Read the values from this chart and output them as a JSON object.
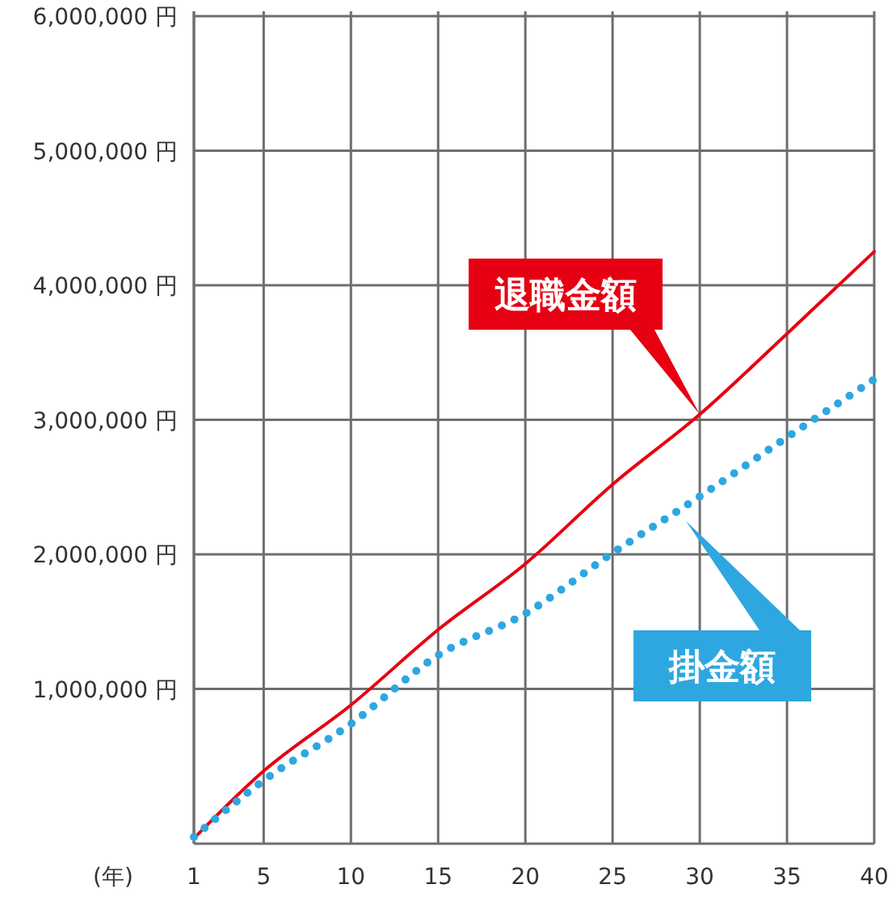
{
  "chart_data": {
    "type": "line",
    "xlabel": "(年)",
    "x": [
      1,
      5,
      10,
      15,
      20,
      25,
      30,
      35,
      40
    ],
    "series": [
      {
        "name": "退職金額",
        "color": "#e60012",
        "line_style": "solid",
        "values": [
          -110000,
          390000,
          880000,
          1440000,
          1930000,
          2520000,
          3040000,
          3640000,
          4250000
        ]
      },
      {
        "name": "掛金額",
        "color": "#2ea7e0",
        "line_style": "dotted",
        "values": [
          -100000,
          320000,
          740000,
          1250000,
          1560000,
          2010000,
          2430000,
          2870000,
          3300000
        ]
      }
    ],
    "xlim": [
      1,
      40
    ],
    "xticks": [
      1,
      5,
      10,
      15,
      20,
      25,
      30,
      35,
      40
    ],
    "ylim": [
      -150000,
      6000000
    ],
    "yticks": [
      {
        "value": 1000000,
        "label": "1,000,000 円"
      },
      {
        "value": 2000000,
        "label": "2,000,000 円"
      },
      {
        "value": 3000000,
        "label": "3,000,000 円"
      },
      {
        "value": 4000000,
        "label": "4,000,000 円"
      },
      {
        "value": 5000000,
        "label": "5,000,000 円"
      },
      {
        "value": 6000000,
        "label": "6,000,000 円"
      }
    ],
    "grid": true,
    "marker": "none"
  }
}
